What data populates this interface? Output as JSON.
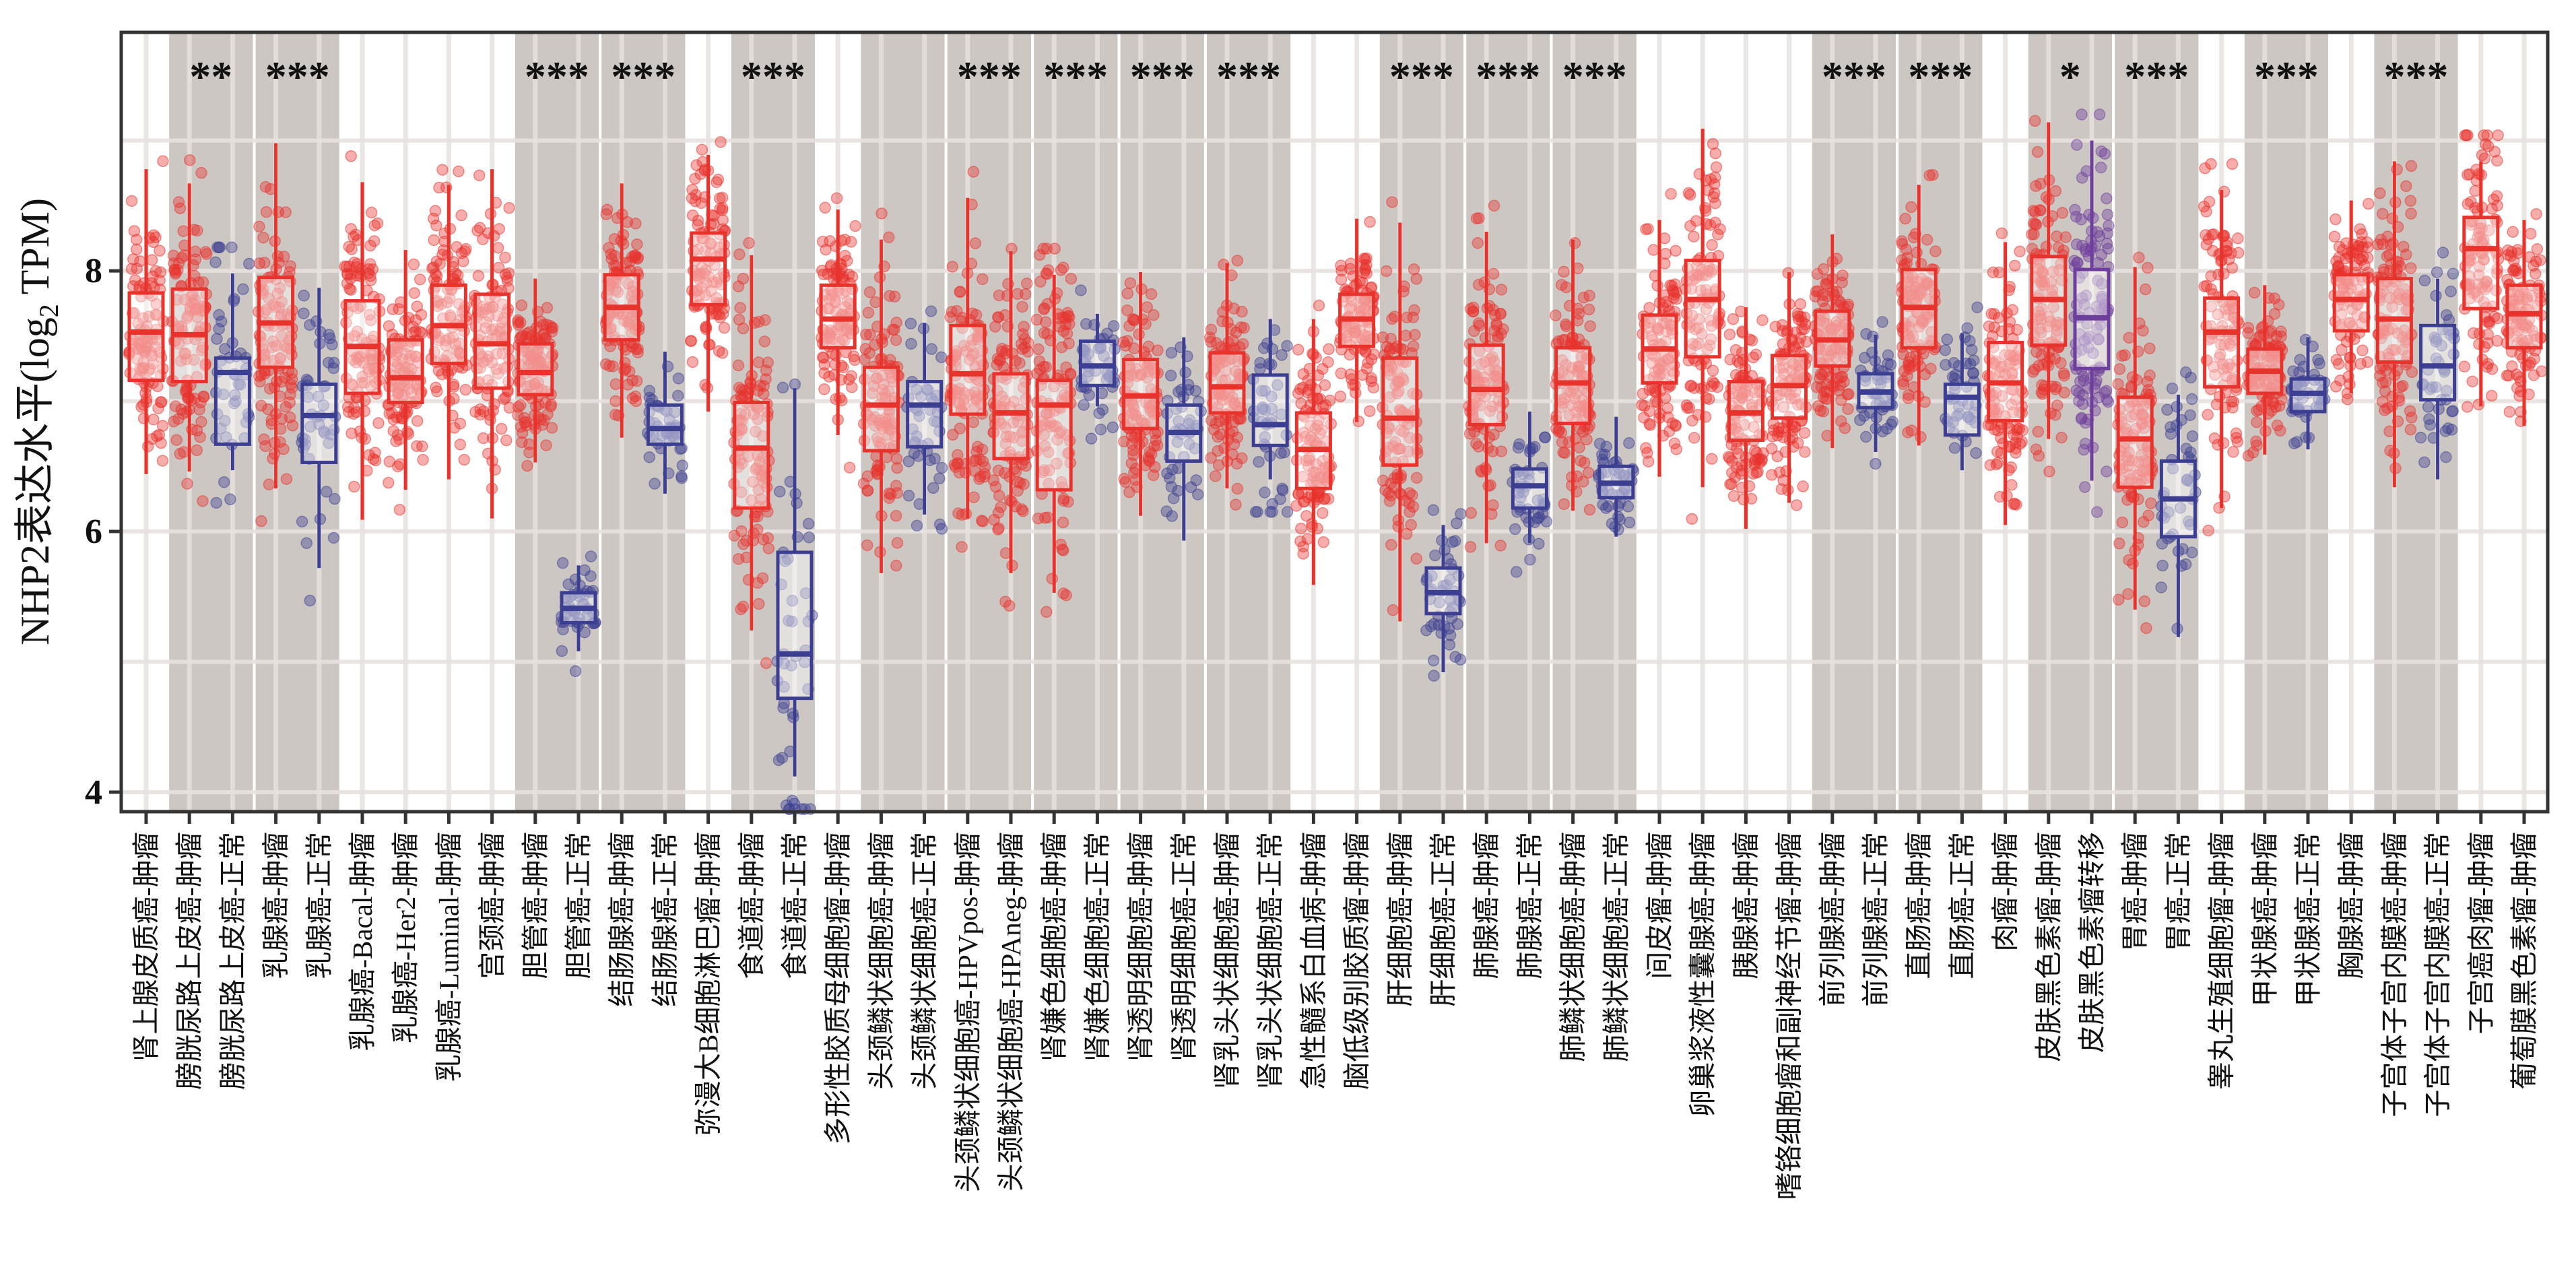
{
  "chart_data": {
    "type": "box",
    "ylabel": "NHP2表达水平(log",
    "ylabel_sub": "2",
    "ylabel_tail": " TPM)",
    "ylim": [
      3.85,
      9.83
    ],
    "yticks": [
      4,
      6,
      8
    ],
    "grid": true,
    "jitter_points": true,
    "colors": {
      "tumor": "#E8322C",
      "normal": "#3C3F91",
      "metastasis": "#6E3E9C",
      "shade": "#CDC7C3",
      "grid": "#E7E2DF"
    },
    "categories": [
      "肾上腺皮质癌-肿瘤",
      "膀胱尿路上皮癌-肿瘤",
      "膀胱尿路上皮癌-正常",
      "乳腺癌-肿瘤",
      "乳腺癌-正常",
      "乳腺癌-Bacal-肿瘤",
      "乳腺癌-Her2-肿瘤",
      "乳腺癌-Luminal-肿瘤",
      "宫颈癌-肿瘤",
      "胆管癌-肿瘤",
      "胆管癌-正常",
      "结肠腺癌-肿瘤",
      "结肠腺癌-正常",
      "弥漫大B细胞淋巴瘤-肿瘤",
      "食道癌-肿瘤",
      "食道癌-正常",
      "多形性胶质母细胞瘤-肿瘤",
      "头颈鳞状细胞癌-肿瘤",
      "头颈鳞状细胞癌-正常",
      "头颈鳞状细胞癌-HPVpos-肿瘤",
      "头颈鳞状细胞癌-HPAneg-肿瘤",
      "肾嫌色细胞癌-肿瘤",
      "肾嫌色细胞癌-正常",
      "肾透明细胞癌-肿瘤",
      "肾透明细胞癌-正常",
      "肾乳头状细胞癌-肿瘤",
      "肾乳头状细胞癌-正常",
      "急性髓系白血病-肿瘤",
      "脑低级别胶质瘤-肿瘤",
      "肝细胞癌-肿瘤",
      "肝细胞癌-正常",
      "肺腺癌-肿瘤",
      "肺腺癌-正常",
      "肺鳞状细胞癌-肿瘤",
      "肺鳞状细胞癌-正常",
      "间皮瘤-肿瘤",
      "卵巢浆液性囊腺癌-肿瘤",
      "胰腺癌-肿瘤",
      "嗜铬细胞瘤和副神经节瘤-肿瘤",
      "前列腺癌-肿瘤",
      "前列腺癌-正常",
      "直肠癌-肿瘤",
      "直肠癌-正常",
      "肉瘤-肿瘤",
      "皮肤黑色素瘤-肿瘤",
      "皮肤黑色素瘤转移",
      "胃癌-肿瘤",
      "胃癌-正常",
      "睾丸生殖细胞瘤-肿瘤",
      "甲状腺癌-肿瘤",
      "甲状腺癌-正常",
      "胸腺癌-肿瘤",
      "子宫体子宫内膜癌-肿瘤",
      "子宫体子宫内膜癌-正常",
      "子宫癌肉瘤-肿瘤",
      "葡萄膜黑色素瘤-肿瘤"
    ],
    "groups": [
      "tumor",
      "tumor",
      "normal",
      "tumor",
      "normal",
      "tumor",
      "tumor",
      "tumor",
      "tumor",
      "tumor",
      "normal",
      "tumor",
      "normal",
      "tumor",
      "tumor",
      "normal",
      "tumor",
      "tumor",
      "normal",
      "tumor",
      "tumor",
      "tumor",
      "normal",
      "tumor",
      "normal",
      "tumor",
      "normal",
      "tumor",
      "tumor",
      "tumor",
      "normal",
      "tumor",
      "normal",
      "tumor",
      "normal",
      "tumor",
      "tumor",
      "tumor",
      "tumor",
      "tumor",
      "normal",
      "tumor",
      "normal",
      "tumor",
      "tumor",
      "metastasis",
      "tumor",
      "normal",
      "tumor",
      "tumor",
      "normal",
      "tumor",
      "tumor",
      "normal",
      "tumor",
      "tumor"
    ],
    "box_stats_columns": [
      "whisker_low",
      "q1",
      "median",
      "q3",
      "whisker_high"
    ],
    "box_stats": [
      [
        6.44,
        7.16,
        7.53,
        7.83,
        8.78
      ],
      [
        6.46,
        7.15,
        7.51,
        7.86,
        8.67
      ],
      [
        6.47,
        6.67,
        7.22,
        7.33,
        7.98
      ],
      [
        6.33,
        7.26,
        7.6,
        7.95,
        8.98
      ],
      [
        5.72,
        6.53,
        6.89,
        7.13,
        7.87
      ],
      [
        6.09,
        7.06,
        7.42,
        7.77,
        8.68
      ],
      [
        6.32,
        6.99,
        7.18,
        7.47,
        8.16
      ],
      [
        6.4,
        7.29,
        7.58,
        7.89,
        8.66
      ],
      [
        6.1,
        7.1,
        7.44,
        7.82,
        8.78
      ],
      [
        6.53,
        7.05,
        7.22,
        7.44,
        7.94
      ],
      [
        5.08,
        5.3,
        5.41,
        5.53,
        5.74
      ],
      [
        6.72,
        7.47,
        7.72,
        7.97,
        8.67
      ],
      [
        6.29,
        6.67,
        6.79,
        6.97,
        7.38
      ],
      [
        6.92,
        7.74,
        8.09,
        8.29,
        8.89
      ],
      [
        5.24,
        6.18,
        6.64,
        6.99,
        8.12
      ],
      [
        4.12,
        4.72,
        5.06,
        5.84,
        7.1
      ],
      [
        6.74,
        7.41,
        7.63,
        7.89,
        8.47
      ],
      [
        5.68,
        6.62,
        6.97,
        7.26,
        8.24
      ],
      [
        6.13,
        6.65,
        6.97,
        7.15,
        7.6
      ],
      [
        6.1,
        6.9,
        7.21,
        7.58,
        8.56
      ],
      [
        5.68,
        6.56,
        6.91,
        7.21,
        8.15
      ],
      [
        5.53,
        6.32,
        6.97,
        7.16,
        7.97
      ],
      [
        6.96,
        7.12,
        7.27,
        7.46,
        7.67
      ],
      [
        6.12,
        6.79,
        7.04,
        7.32,
        7.99
      ],
      [
        5.93,
        6.54,
        6.76,
        6.97,
        7.49
      ],
      [
        6.33,
        6.91,
        7.11,
        7.37,
        8.06
      ],
      [
        6.4,
        6.66,
        6.82,
        7.2,
        7.63
      ],
      [
        5.59,
        6.33,
        6.63,
        6.91,
        7.63
      ],
      [
        6.84,
        7.42,
        7.63,
        7.82,
        8.4
      ],
      [
        5.31,
        6.51,
        6.87,
        7.33,
        8.37
      ],
      [
        4.92,
        5.37,
        5.53,
        5.72,
        6.05
      ],
      [
        5.91,
        6.82,
        7.09,
        7.43,
        8.3
      ],
      [
        5.91,
        6.18,
        6.35,
        6.48,
        6.92
      ],
      [
        6.16,
        6.83,
        7.14,
        7.41,
        8.24
      ],
      [
        5.96,
        6.26,
        6.37,
        6.5,
        6.88
      ],
      [
        6.42,
        7.14,
        7.4,
        7.66,
        8.39
      ],
      [
        6.34,
        7.34,
        7.78,
        8.08,
        9.09
      ],
      [
        6.02,
        6.7,
        6.91,
        7.15,
        7.72
      ],
      [
        6.22,
        6.87,
        7.12,
        7.35,
        7.99
      ],
      [
        6.64,
        7.27,
        7.47,
        7.69,
        8.28
      ],
      [
        6.61,
        6.95,
        7.07,
        7.21,
        7.51
      ],
      [
        6.66,
        7.41,
        7.72,
        8.01,
        8.66
      ],
      [
        6.47,
        6.74,
        7.03,
        7.13,
        7.52
      ],
      [
        6.05,
        6.85,
        7.14,
        7.45,
        8.22
      ],
      [
        6.71,
        7.43,
        7.78,
        8.11,
        9.14
      ],
      [
        6.39,
        7.25,
        7.64,
        8.01,
        9.0
      ],
      [
        5.4,
        6.34,
        6.71,
        7.03,
        8.03
      ],
      [
        5.19,
        5.96,
        6.25,
        6.54,
        7.05
      ],
      [
        6.18,
        7.11,
        7.53,
        7.79,
        8.62
      ],
      [
        6.59,
        7.06,
        7.23,
        7.4,
        7.89
      ],
      [
        6.63,
        6.92,
        7.06,
        7.17,
        7.49
      ],
      [
        7.06,
        7.54,
        7.78,
        7.97,
        8.54
      ],
      [
        6.34,
        7.3,
        7.63,
        7.94,
        8.84
      ],
      [
        6.4,
        7.01,
        7.27,
        7.58,
        7.94
      ],
      [
        6.96,
        7.71,
        8.17,
        8.41,
        8.84
      ],
      [
        6.81,
        7.41,
        7.67,
        7.89,
        8.39
      ]
    ],
    "comparisons": [
      {
        "pair": [
          1,
          2
        ],
        "label": "**"
      },
      {
        "pair": [
          3,
          4
        ],
        "label": "***"
      },
      {
        "pair": [
          9,
          10
        ],
        "label": "***"
      },
      {
        "pair": [
          11,
          12
        ],
        "label": "***"
      },
      {
        "pair": [
          14,
          15
        ],
        "label": "***"
      },
      {
        "pair": [
          17,
          18
        ],
        "label": ""
      },
      {
        "pair": [
          19,
          20
        ],
        "label": "***"
      },
      {
        "pair": [
          21,
          22
        ],
        "label": "***"
      },
      {
        "pair": [
          23,
          24
        ],
        "label": "***"
      },
      {
        "pair": [
          25,
          26
        ],
        "label": "***"
      },
      {
        "pair": [
          29,
          30
        ],
        "label": "***"
      },
      {
        "pair": [
          31,
          32
        ],
        "label": "***"
      },
      {
        "pair": [
          33,
          34
        ],
        "label": "***"
      },
      {
        "pair": [
          39,
          40
        ],
        "label": "***"
      },
      {
        "pair": [
          41,
          42
        ],
        "label": "***"
      },
      {
        "pair": [
          44,
          45
        ],
        "label": "*"
      },
      {
        "pair": [
          46,
          47
        ],
        "label": "***"
      },
      {
        "pair": [
          49,
          50
        ],
        "label": "***"
      },
      {
        "pair": [
          52,
          53
        ],
        "label": "***"
      }
    ]
  }
}
